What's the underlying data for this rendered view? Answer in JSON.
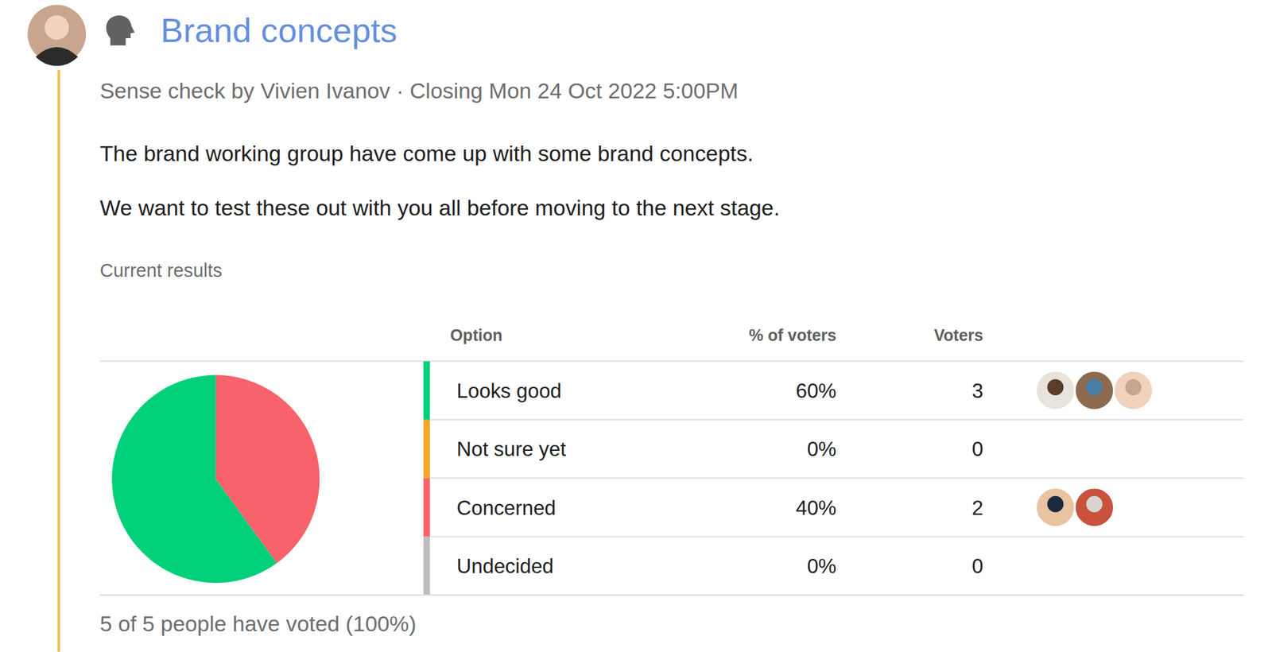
{
  "header": {
    "title": "Brand concepts",
    "meta": "Sense check by Vivien Ivanov · Closing Mon 24 Oct 2022 5:00PM"
  },
  "body": [
    "The brand working group have come up with some brand concepts.",
    "We want to test these out with you all before moving to the next stage."
  ],
  "results": {
    "heading": "Current results",
    "columns": [
      "Option",
      "% of voters",
      "Voters"
    ],
    "voters": [
      3,
      0,
      2,
      0
    ],
    "footer": "5 of 5 people have voted (100%)"
  },
  "chart_data": {
    "type": "pie",
    "categories": [
      "Looks good",
      "Not sure yet",
      "Concerned",
      "Undecided"
    ],
    "values": [
      60,
      0,
      40,
      0
    ],
    "value_labels": [
      "60%",
      "0%",
      "40%",
      "0%"
    ],
    "colors": [
      "#00d07a",
      "#f5a52a",
      "#f7626b",
      "#bdbdbd"
    ]
  }
}
